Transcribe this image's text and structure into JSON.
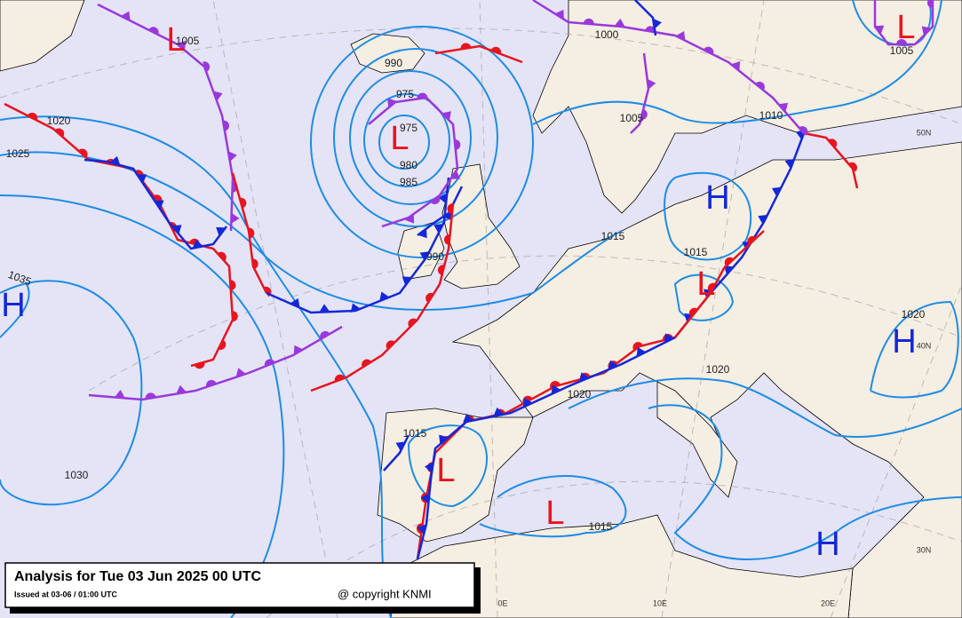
{
  "legend": {
    "title": "Analysis for Tue 03 Jun 2025 00 UTC",
    "issued": "Issued at 03-06 / 01:00 UTC",
    "copyright": "@ copyright KNMI"
  },
  "centers": [
    "L",
    "L",
    "H",
    "L",
    "H",
    "L",
    "H",
    "L",
    "L",
    "H"
  ],
  "isobar_labels": [
    "1005",
    "1020",
    "1025",
    "1035",
    "990",
    "975",
    "975",
    "980",
    "985",
    "1000",
    "1005",
    "1010",
    "1015",
    "1015",
    "1005",
    "990",
    "1020",
    "1020",
    "1020",
    "1015",
    "1030",
    "1015"
  ],
  "graticule_labels": [
    "50N",
    "40N",
    "30N",
    "0E",
    "10E",
    "20E"
  ]
}
